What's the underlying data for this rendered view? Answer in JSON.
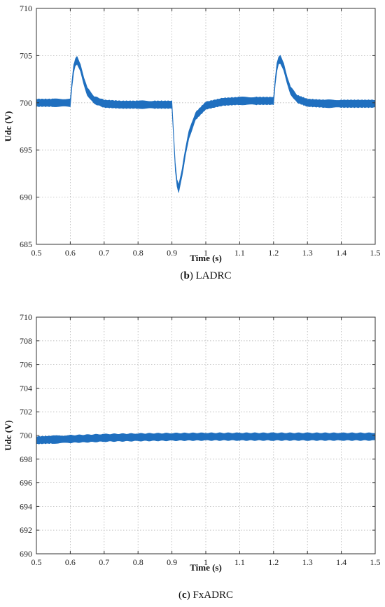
{
  "chart_data": [
    {
      "type": "line",
      "caption_letter": "b",
      "caption_text": "LADRC",
      "xlabel": "Time (s)",
      "ylabel": "Udc (V)",
      "xlim": [
        0.5,
        1.5
      ],
      "ylim": [
        685,
        710
      ],
      "xticks": [
        "0.5",
        "0.6",
        "0.7",
        "0.8",
        "0.9",
        "1",
        "1.1",
        "1.2",
        "1.3",
        "1.4",
        "1.5"
      ],
      "yticks": [
        "685",
        "690",
        "695",
        "700",
        "705",
        "710"
      ],
      "grid": true,
      "series_color": "#1f6fbf",
      "band_width_V": 0.7,
      "series": [
        {
          "x": [
            0.5,
            0.55,
            0.6,
            0.605,
            0.61,
            0.615,
            0.62,
            0.63,
            0.64,
            0.65,
            0.67,
            0.7,
            0.75,
            0.8,
            0.85,
            0.9,
            0.905,
            0.91,
            0.915,
            0.92,
            0.93,
            0.94,
            0.95,
            0.97,
            1.0,
            1.05,
            1.1,
            1.15,
            1.2,
            1.205,
            1.21,
            1.215,
            1.22,
            1.23,
            1.24,
            1.25,
            1.27,
            1.3,
            1.35,
            1.4,
            1.45,
            1.5
          ],
          "y": [
            700.0,
            700.0,
            700.0,
            702.0,
            703.6,
            704.3,
            704.5,
            703.7,
            702.3,
            701.2,
            700.3,
            699.9,
            699.8,
            699.8,
            699.8,
            699.8,
            696.5,
            693.2,
            691.5,
            690.9,
            692.6,
            694.8,
            696.6,
            698.6,
            699.7,
            700.1,
            700.2,
            700.2,
            700.2,
            702.3,
            703.8,
            704.5,
            704.6,
            703.8,
            702.4,
            701.3,
            700.4,
            700.0,
            699.9,
            699.9,
            699.9,
            699.9
          ]
        }
      ]
    },
    {
      "type": "line",
      "caption_letter": "c",
      "caption_text": "FxADRC",
      "xlabel": "Time (s)",
      "ylabel": "Udc (V)",
      "xlim": [
        0.5,
        1.5
      ],
      "ylim": [
        690,
        710
      ],
      "xticks": [
        "0.5",
        "0.6",
        "0.7",
        "0.8",
        "0.9",
        "1",
        "1.1",
        "1.2",
        "1.3",
        "1.4",
        "1.5"
      ],
      "yticks": [
        "690",
        "692",
        "694",
        "696",
        "698",
        "700",
        "702",
        "704",
        "706",
        "708",
        "710"
      ],
      "grid": true,
      "series_color": "#1f6fbf",
      "band_width_V": 0.55,
      "series": [
        {
          "x": [
            0.5,
            0.55,
            0.6,
            0.7,
            0.8,
            0.9,
            1.0,
            1.1,
            1.2,
            1.3,
            1.4,
            1.5
          ],
          "y": [
            699.6,
            699.65,
            699.7,
            699.8,
            699.85,
            699.88,
            699.9,
            699.9,
            699.9,
            699.9,
            699.9,
            699.9
          ]
        }
      ]
    }
  ]
}
